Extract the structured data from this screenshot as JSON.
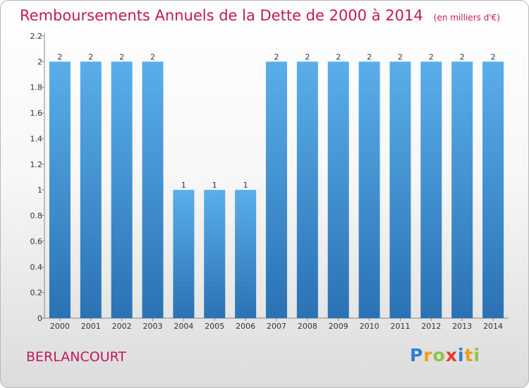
{
  "title": "Remboursements Annuels de la Dette de 2000 à 2014",
  "unit": "(en milliers d'€)",
  "commune": "BERLANCOURT",
  "logo": {
    "letters": [
      "P",
      "r",
      "o",
      "x",
      "i",
      "t",
      "i"
    ],
    "colors": [
      "#2e7fd1",
      "#f39c12",
      "#8bc34a",
      "#e53935",
      "#2e7fd1",
      "#f39c12",
      "#8bc34a"
    ]
  },
  "colors": {
    "bar_light": "#5aaeea",
    "bar_dark": "#2a72b4",
    "title": "#c2185b"
  },
  "chart_data": {
    "type": "bar",
    "title": "Remboursements Annuels de la Dette de 2000 à 2014",
    "subtitle": "(en milliers d'€)",
    "xlabel": "",
    "ylabel": "",
    "categories": [
      "2000",
      "2001",
      "2002",
      "2003",
      "2004",
      "2005",
      "2006",
      "2007",
      "2008",
      "2009",
      "2010",
      "2011",
      "2012",
      "2013",
      "2014"
    ],
    "values": [
      2,
      2,
      2,
      2,
      1,
      1,
      1,
      2,
      2,
      2,
      2,
      2,
      2,
      2,
      2
    ],
    "value_labels": [
      "2",
      "2",
      "2",
      "2",
      "1",
      "1",
      "1",
      "2",
      "2",
      "2",
      "2",
      "2",
      "2",
      "2",
      "2"
    ],
    "ylim": [
      0,
      2.2
    ],
    "yticks": [
      0,
      0.2,
      0.4,
      0.6,
      0.8,
      1,
      1.2,
      1.4,
      1.6,
      1.8,
      2,
      2.2
    ],
    "ytick_labels": [
      "0",
      "0.2",
      "0.4",
      "0.6",
      "0.8",
      "1",
      "1.2",
      "1.4",
      "1.6",
      "1.8",
      "2",
      "2.2"
    ],
    "grid": false,
    "legend": "none"
  }
}
